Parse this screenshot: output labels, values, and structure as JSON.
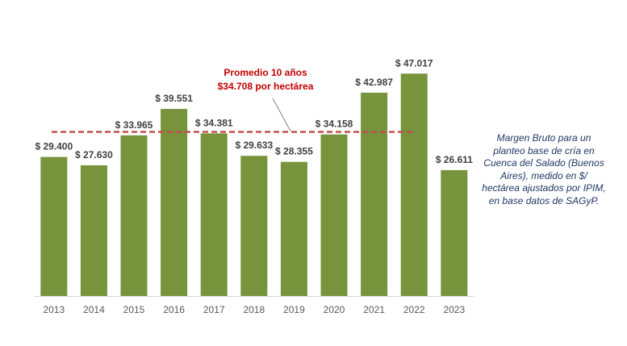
{
  "chart_data": {
    "type": "bar",
    "categories": [
      "2013",
      "2014",
      "2015",
      "2016",
      "2017",
      "2018",
      "2019",
      "2020",
      "2021",
      "2022",
      "2023"
    ],
    "values": [
      29400,
      27630,
      33965,
      39551,
      34381,
      29633,
      28355,
      34158,
      42987,
      47017,
      26611
    ],
    "data_labels": [
      "$ 29.400",
      "$ 27.630",
      "$ 33.965",
      "$ 39.551",
      "$ 34.381",
      "$ 29.633",
      "$ 28.355",
      "$ 34.158",
      "$ 42.987",
      "$ 47.017",
      "$ 26.611"
    ],
    "ylim": [
      0,
      48000
    ],
    "grid": false,
    "bar_color": "#77933c",
    "reference_line": {
      "value": 34708,
      "color": "#c0504d",
      "style": "dashed",
      "label_lines": [
        "Promedio 10 años",
        "$34.708 por hectárea"
      ],
      "label_color": "#c00000"
    }
  },
  "note": {
    "lines": [
      "Margen Bruto para un",
      "planteo base de cría en",
      "Cuenca del Salado (Buenos",
      "Aires), medido en $/",
      "hectárea ajustados por IPIM,",
      "en base datos de SAGyP."
    ],
    "color": "#1f3864"
  }
}
